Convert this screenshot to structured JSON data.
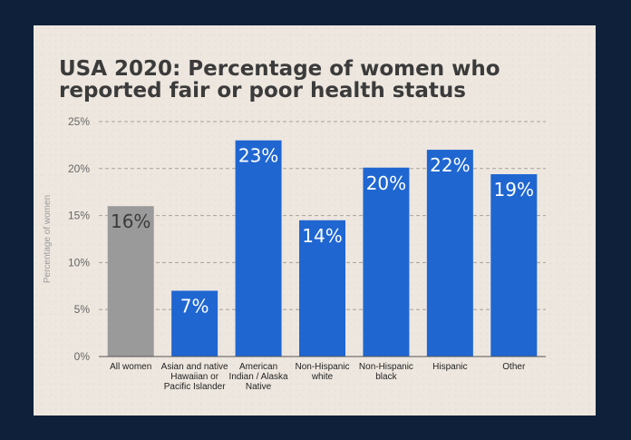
{
  "chart_data": {
    "type": "bar",
    "title": "USA 2020: Percentage of women who reported fair or poor health status",
    "ylabel": "Percentage of women",
    "xlabel": "",
    "ylim": [
      0,
      25
    ],
    "yticks": [
      "0%",
      "5%",
      "10%",
      "15%",
      "20%",
      "25%"
    ],
    "grid": true,
    "categories": [
      "All women",
      "Asian and native Hawaiian or Pacific Islander",
      "American Indian / Alaska Native",
      "Non-Hispanic white",
      "Non-Hispanic black",
      "Hispanic",
      "Other"
    ],
    "tick_lines": [
      [
        "All women"
      ],
      [
        "Asian and native",
        "Hawaiian or",
        "Pacific Islander"
      ],
      [
        "American",
        "Indian / Alaska",
        "Native"
      ],
      [
        "Non-Hispanic",
        "white"
      ],
      [
        "Non-Hispanic",
        "black"
      ],
      [
        "Hispanic"
      ],
      [
        "Other"
      ]
    ],
    "values": [
      16,
      7,
      23,
      14.5,
      20.1,
      22,
      19.4
    ],
    "data_labels": [
      "16%",
      "7%",
      "23%",
      "14%",
      "20%",
      "22%",
      "19%"
    ],
    "colors": {
      "highlight": "#9a9a9a",
      "bar": "#1f66d1",
      "grid": "#a8a29c",
      "axis": "#555555"
    },
    "highlight_index": 0
  }
}
